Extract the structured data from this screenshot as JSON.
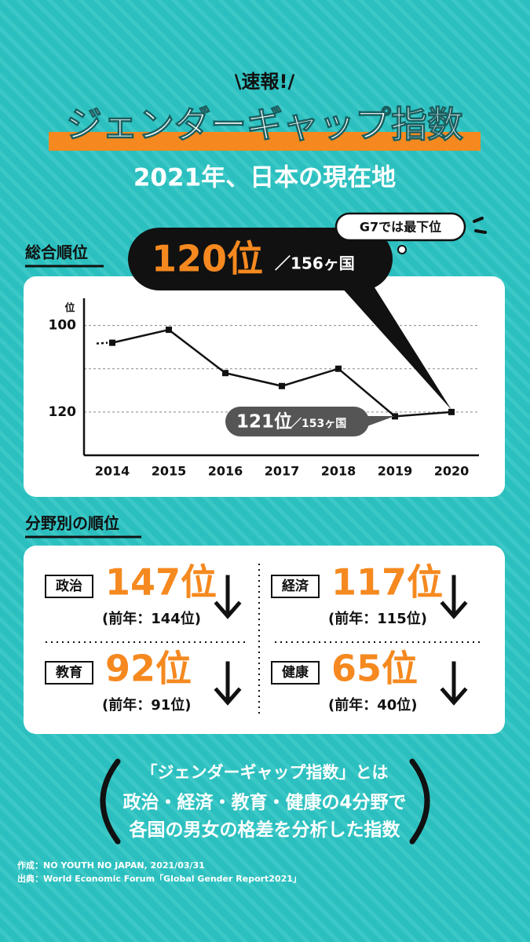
{
  "header": {
    "badge": "\\速報!/",
    "title": "ジェンダーギャップ指数",
    "subtitle": "2021年、日本の現在地"
  },
  "overall": {
    "heading": "総合順位",
    "current_rank": "120位",
    "current_total": "／156ヶ国",
    "g7_note": "G7では最下位",
    "previous_rank": "121位",
    "previous_total": "／153ヶ国"
  },
  "chart_data": {
    "type": "line",
    "y_label": "位",
    "categories": [
      "2014",
      "2015",
      "2016",
      "2017",
      "2018",
      "2019",
      "2020"
    ],
    "series": [
      {
        "name": "総合順位",
        "color": "#111111",
        "values": [
          104,
          101,
          111,
          114,
          110,
          121,
          120
        ]
      }
    ],
    "ylim": [
      95,
      130
    ],
    "y_inverted": true,
    "yticks": [
      100,
      120
    ],
    "gridlines": [
      100,
      110,
      120
    ],
    "grid": true
  },
  "fields": {
    "heading": "分野別の順位",
    "items": [
      {
        "label": "政治",
        "rank": "147位",
        "previous": "(前年：144位)"
      },
      {
        "label": "経済",
        "rank": "117位",
        "previous": "(前年：115位)"
      },
      {
        "label": "教育",
        "rank": "92位",
        "previous": "(前年：91位)"
      },
      {
        "label": "健康",
        "rank": "65位",
        "previous": "(前年：40位)"
      }
    ]
  },
  "explanation": {
    "lines": [
      "「ジェンダーギャップ指数」とは",
      "政治・経済・教育・健康の4分野で",
      "各国の男女の格差を分析した指数"
    ]
  },
  "credits": {
    "lines": [
      "作成：NO YOUTH NO JAPAN, 2021/03/31",
      "出典：World Economic Forum「Global Gender Report2021」"
    ]
  }
}
